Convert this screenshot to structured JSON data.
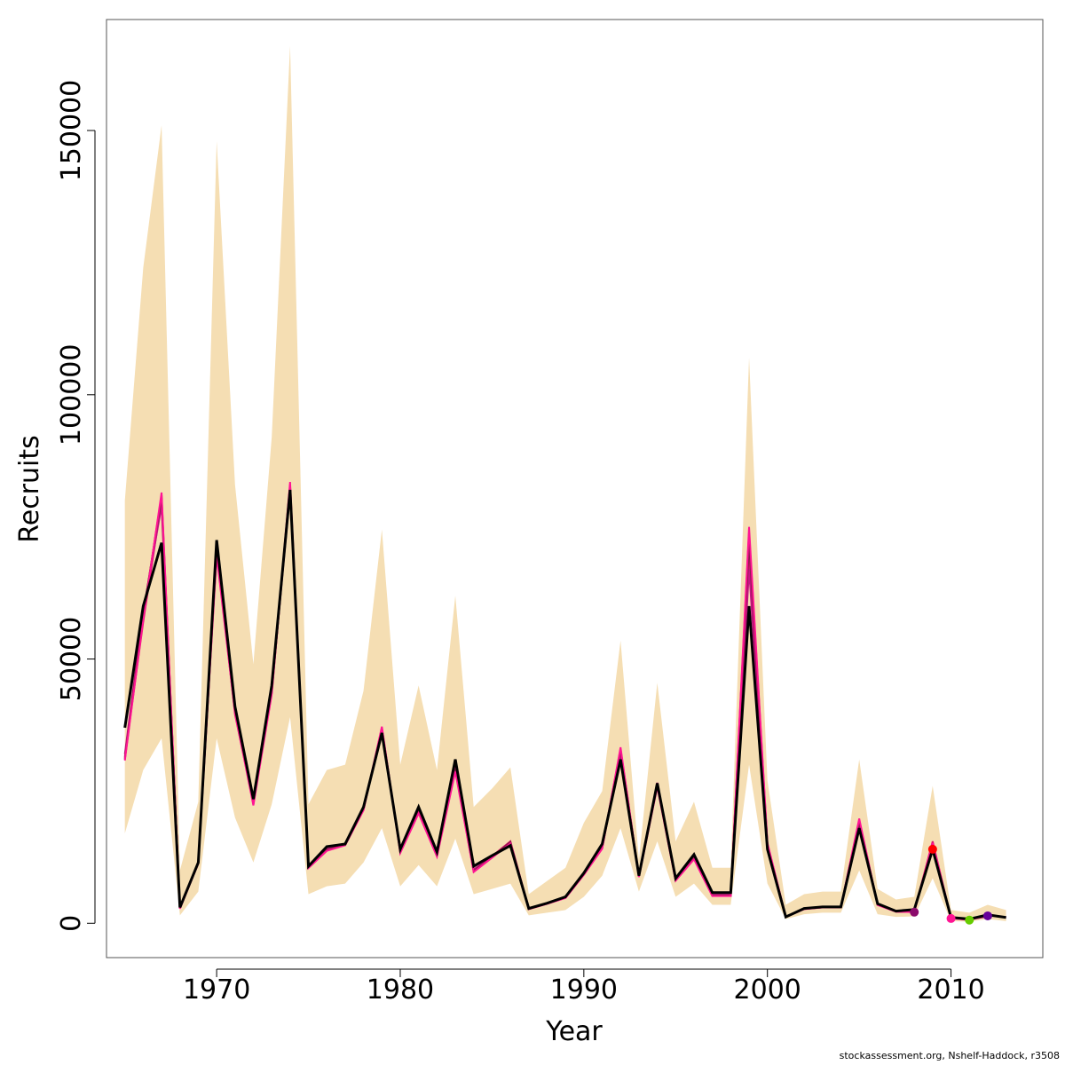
{
  "chart_data": {
    "type": "line",
    "xlabel": "Year",
    "ylabel": "Recruits",
    "xlim": [
      1964,
      2015
    ],
    "ylim": [
      -6500,
      171000
    ],
    "x_ticks": [
      1970,
      1980,
      1990,
      2000,
      2010
    ],
    "y_ticks": [
      0,
      50000,
      100000,
      150000
    ],
    "grid": false,
    "colors": {
      "band": "#f5deb3",
      "main_line": "#000000",
      "retro_lines": [
        "#b5006b",
        "#e0166b",
        "#c71585",
        "#8b1a4a",
        "#ff1493"
      ],
      "retro_points": [
        "#8b0a6b",
        "#ff0000",
        "#ff1493",
        "#66cc00",
        "#660099"
      ]
    },
    "x": [
      1965,
      1966,
      1967,
      1968,
      1969,
      1970,
      1971,
      1972,
      1973,
      1974,
      1975,
      1976,
      1977,
      1978,
      1979,
      1980,
      1981,
      1982,
      1983,
      1984,
      1985,
      1986,
      1987,
      1988,
      1989,
      1990,
      1991,
      1992,
      1993,
      1994,
      1995,
      1996,
      1997,
      1998,
      1999,
      2000,
      2001,
      2002,
      2003,
      2004,
      2005,
      2006,
      2007,
      2008,
      2009,
      2010,
      2011,
      2012,
      2013
    ],
    "band_upper": [
      80000,
      124000,
      151000,
      10000,
      23000,
      148000,
      83000,
      49000,
      92000,
      166000,
      22500,
      29000,
      30000,
      44000,
      74500,
      30000,
      45000,
      29000,
      62000,
      22000,
      25500,
      29500,
      5500,
      8000,
      10500,
      19000,
      25000,
      53500,
      12000,
      45500,
      15500,
      23000,
      10500,
      10500,
      107000,
      27000,
      3500,
      5500,
      6000,
      6000,
      31000,
      6500,
      4500,
      5000,
      26000,
      2500,
      2000,
      3500,
      2500
    ],
    "band_lower": [
      17000,
      29000,
      35000,
      1500,
      6000,
      35000,
      20000,
      11500,
      22500,
      39000,
      5500,
      7000,
      7500,
      11500,
      18000,
      7000,
      11000,
      7000,
      16000,
      5500,
      6500,
      7500,
      1500,
      2000,
      2500,
      5000,
      9000,
      18000,
      6000,
      15500,
      5000,
      7500,
      3500,
      3500,
      30000,
      7500,
      800,
      1700,
      2000,
      2000,
      10000,
      1700,
      1200,
      1300,
      8500,
      400,
      300,
      800,
      400
    ],
    "series": [
      {
        "values": [
          37000,
          60000,
          72000,
          3000,
          11500,
          72500,
          41000,
          23500,
          45000,
          82000,
          10800,
          14500,
          15000,
          22000,
          36000,
          14000,
          22000,
          13500,
          31000,
          10800,
          12800,
          14700,
          2800,
          3800,
          5000,
          9500,
          15000,
          31000,
          9000,
          26500,
          8500,
          13000,
          5800,
          5800,
          60000,
          14000,
          1200,
          2800,
          3100,
          3100,
          18000,
          3700,
          2300,
          2600,
          14000,
          1100,
          800,
          1600,
          1100
        ]
      }
    ],
    "retro_series": [
      {
        "values": [
          31000,
          58000,
          81000,
          2800,
          11400,
          70000,
          40000,
          22500,
          44000,
          83000,
          10500,
          13800,
          14800,
          21500,
          37000,
          13500,
          21000,
          12800,
          29000,
          9800,
          12500,
          15200,
          2700,
          3700,
          4800,
          9200,
          14200,
          32500,
          8800,
          26000,
          8100,
          12200,
          5200,
          5200,
          74000,
          15000,
          1200,
          2700,
          3000,
          3000,
          19500,
          3500,
          2200,
          2100
        ]
      },
      {
        "values": [
          31500,
          57000,
          80000,
          2900,
          11300,
          71000,
          39500,
          22800,
          43500,
          82500,
          10600,
          14000,
          14900,
          21800,
          36500,
          13800,
          21300,
          13000,
          29500,
          10000,
          12700,
          15500,
          2800,
          3800,
          4900,
          9300,
          14400,
          33000,
          9000,
          26300,
          8200,
          12400,
          5300,
          5300,
          70000,
          14600,
          1200,
          2800,
          3000,
          3100,
          19200,
          3600,
          2250,
          2250,
          15500,
          900
        ]
      },
      {
        "values": [
          32000,
          59000,
          79000,
          2850,
          11350,
          71500,
          40200,
          23000,
          44200,
          81500,
          10700,
          14200,
          14950,
          21900,
          36300,
          13700,
          21500,
          13100,
          30000,
          10200,
          12600,
          15300,
          2750,
          3750,
          4900,
          9400,
          14600,
          32000,
          8900,
          26600,
          8300,
          12600,
          5400,
          5400,
          67000,
          14400,
          1200,
          2750,
          3050,
          3050,
          18800,
          3600,
          2260,
          2300,
          14500,
          1000,
          600
        ]
      },
      {
        "values": [
          31200,
          58500,
          80500,
          2820,
          11420,
          70500,
          40500,
          22700,
          43800,
          82200,
          10550,
          13900,
          14850,
          21700,
          36800,
          13600,
          21200,
          12900,
          29200,
          9900,
          12550,
          15400,
          2720,
          3720,
          4850,
          9250,
          14300,
          32800,
          8850,
          26200,
          8150,
          12300,
          5250,
          5250,
          72000,
          14800,
          1200,
          2720,
          3020,
          3020,
          19000,
          3550,
          2220,
          2200,
          14800,
          1050,
          700,
          1300
        ]
      },
      {
        "values": [
          30800,
          57500,
          81500,
          2780,
          11380,
          69500,
          39800,
          22300,
          43300,
          83500,
          10450,
          13700,
          14750,
          21400,
          37200,
          13300,
          20800,
          12600,
          28700,
          9700,
          12400,
          15100,
          2680,
          3680,
          4780,
          9150,
          14100,
          33300,
          8750,
          25800,
          8050,
          12100,
          5150,
          5150,
          75000,
          15200,
          1200,
          2680,
          2980,
          2980,
          19800,
          3450,
          2180,
          2150,
          15200,
          950,
          650,
          1500,
          1100
        ]
      }
    ],
    "retro_points": [
      {
        "year": 2008,
        "value": 2100
      },
      {
        "year": 2009,
        "value": 14000
      },
      {
        "year": 2010,
        "value": 900
      },
      {
        "year": 2011,
        "value": 600
      },
      {
        "year": 2012,
        "value": 1400
      }
    ]
  },
  "credit": "stockassessment.org, Nshelf-Haddock, r3508"
}
